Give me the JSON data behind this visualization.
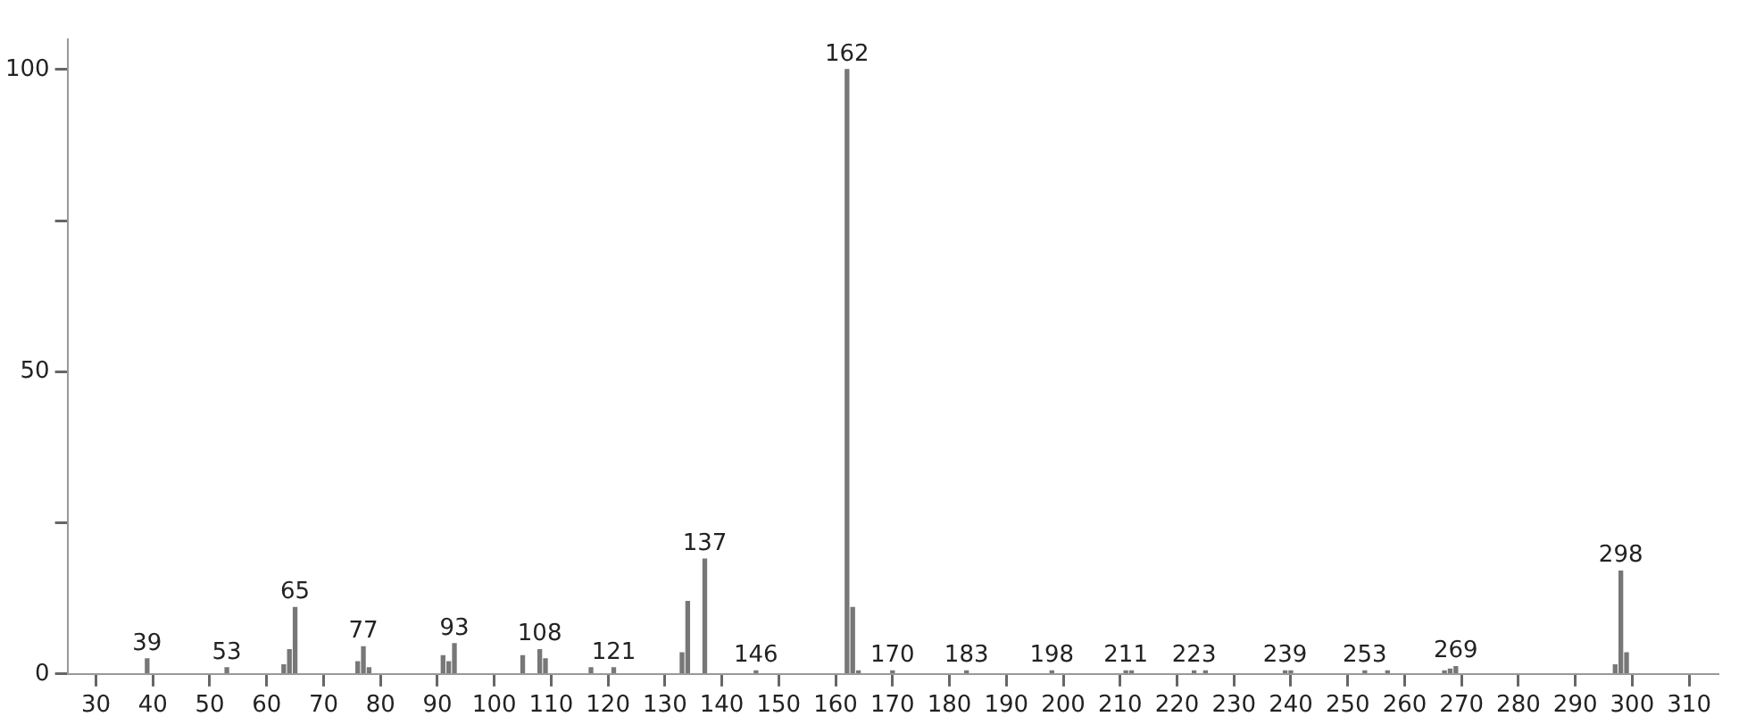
{
  "chart_data": {
    "type": "bar",
    "x": [
      39,
      53,
      63,
      64,
      65,
      76,
      77,
      78,
      91,
      92,
      93,
      105,
      108,
      109,
      117,
      121,
      133,
      134,
      137,
      146,
      162,
      163,
      164,
      170,
      183,
      198,
      211,
      212,
      223,
      225,
      239,
      240,
      253,
      257,
      267,
      268,
      269,
      297,
      298,
      299
    ],
    "values": [
      2.5,
      1,
      1.5,
      4,
      11,
      2,
      4.5,
      1,
      3,
      2,
      5,
      3,
      4,
      2.5,
      1,
      1,
      3.5,
      12,
      19,
      0.5,
      100,
      11,
      0.5,
      0.5,
      0.5,
      0.5,
      0.5,
      0.5,
      0.5,
      0.5,
      0.5,
      0.5,
      0.5,
      0.5,
      0.5,
      0.8,
      1.2,
      1.5,
      17,
      3.5
    ],
    "color": "#777777",
    "xlim": [
      25,
      315
    ],
    "xticks": [
      30,
      40,
      50,
      60,
      70,
      80,
      90,
      100,
      110,
      120,
      130,
      140,
      150,
      160,
      170,
      180,
      190,
      200,
      210,
      220,
      230,
      240,
      250,
      260,
      270,
      280,
      290,
      300,
      310
    ],
    "ylim": [
      0,
      105
    ],
    "yticks": [
      0,
      {
        "value": 25,
        "label": null
      },
      50,
      {
        "value": 75,
        "label": null
      },
      100
    ],
    "grid": false,
    "legend": false,
    "annotations": [
      {
        "text": "39",
        "x": 39,
        "y": 2.5
      },
      {
        "text": "53",
        "x": 53,
        "y": 1
      },
      {
        "text": "65",
        "x": 65,
        "y": 11
      },
      {
        "text": "77",
        "x": 77,
        "y": 4.5
      },
      {
        "text": "93",
        "x": 93,
        "y": 5
      },
      {
        "text": "108",
        "x": 108,
        "y": 4
      },
      {
        "text": "121",
        "x": 121,
        "y": 1
      },
      {
        "text": "137",
        "x": 137,
        "y": 19
      },
      {
        "text": "146",
        "x": 146,
        "y": 0.5
      },
      {
        "text": "162",
        "x": 162,
        "y": 100
      },
      {
        "text": "170",
        "x": 170,
        "y": 0.5
      },
      {
        "text": "183",
        "x": 183,
        "y": 0.5
      },
      {
        "text": "198",
        "x": 198,
        "y": 0.5
      },
      {
        "text": "211",
        "x": 211,
        "y": 0.5
      },
      {
        "text": "223",
        "x": 223,
        "y": 0.5
      },
      {
        "text": "239",
        "x": 239,
        "y": 0.5
      },
      {
        "text": "253",
        "x": 253,
        "y": 0.5
      },
      {
        "text": "269",
        "x": 269,
        "y": 1.2
      },
      {
        "text": "298",
        "x": 298,
        "y": 17
      }
    ]
  }
}
